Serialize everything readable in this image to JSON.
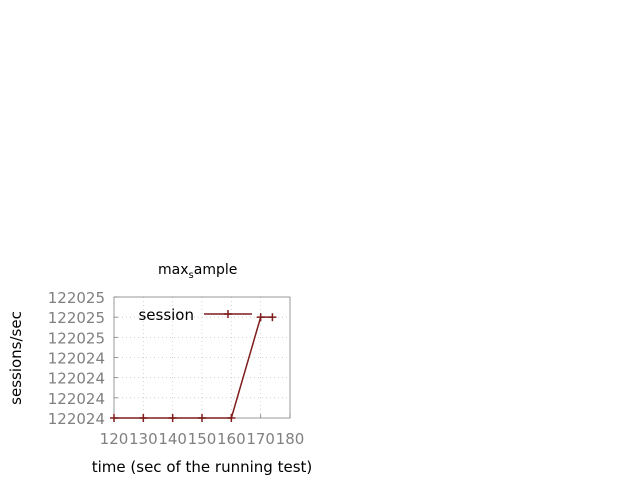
{
  "chart_data": {
    "type": "line",
    "title": "max",
    "title_subscript": "s",
    "title_suffix": "ample",
    "xlabel": "time (sec of the running test)",
    "ylabel": "sessions/sec",
    "xlim": [
      120,
      180
    ],
    "x_ticks": [
      "120",
      "130",
      "140",
      "150",
      "160",
      "170",
      "180"
    ],
    "y_ticks": [
      "122024",
      "122024",
      "122024",
      "122024",
      "122025",
      "122025",
      "122025"
    ],
    "grid": true,
    "legend_position": "top-right",
    "series": [
      {
        "name": "session",
        "color": "#7f1d1d",
        "x": [
          120,
          130,
          140,
          150,
          160,
          170,
          174
        ],
        "y": [
          0,
          0,
          0,
          0,
          0,
          5,
          5
        ]
      }
    ]
  }
}
